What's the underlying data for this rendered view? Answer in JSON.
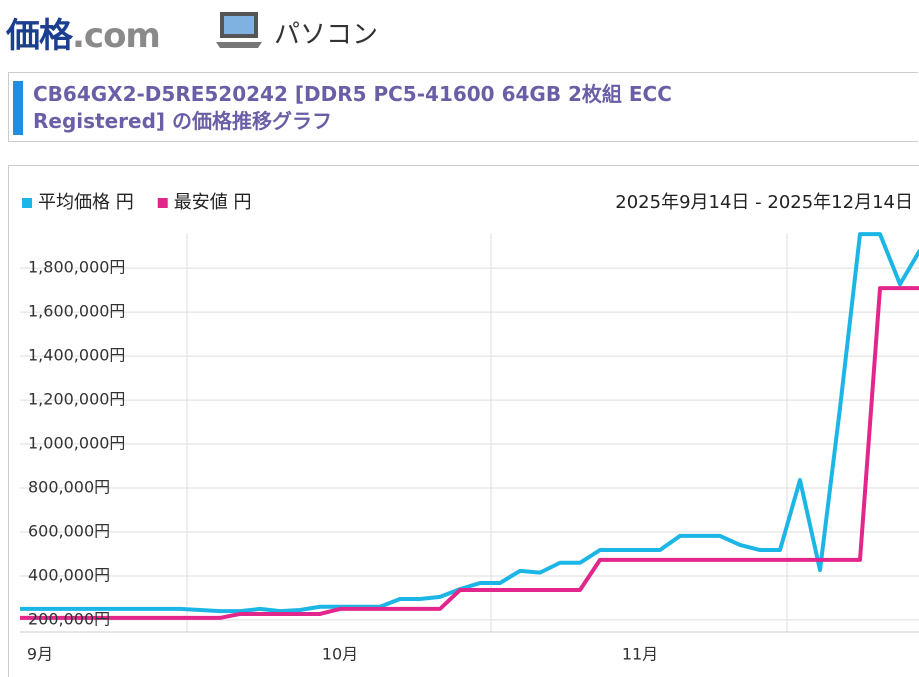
{
  "header": {
    "logo_main": "価格",
    "logo_domain": ".com",
    "category": "パソコン"
  },
  "page_title": "CB64GX2-D5RE520242 [DDR5 PC5-41600 64GB 2枚組 ECC Registered] の価格推移グラフ",
  "chart_data": {
    "type": "line",
    "date_range": "2025年9月14日 - 2025年12月14日",
    "categories": [
      null,
      "9月",
      null,
      null,
      null,
      null,
      null,
      null,
      null,
      null,
      null,
      null,
      null,
      null,
      null,
      null,
      "10月",
      null,
      null,
      null,
      null,
      null,
      null,
      null,
      null,
      null,
      null,
      null,
      null,
      null,
      null,
      "11月",
      null,
      null,
      null,
      null,
      null,
      null,
      null,
      null,
      null,
      null,
      null,
      null,
      null,
      null
    ],
    "series": [
      {
        "name": "平均価格 円",
        "color": "#1cb6e6",
        "values": [
          250000,
          250000,
          250000,
          250000,
          250000,
          250000,
          250000,
          250000,
          250000,
          245000,
          240000,
          240000,
          250000,
          240000,
          245000,
          260000,
          260000,
          260000,
          260000,
          295000,
          295000,
          305000,
          340000,
          368000,
          368000,
          423000,
          415000,
          460000,
          460000,
          518000,
          518000,
          518000,
          518000,
          582000,
          582000,
          582000,
          541000,
          518000,
          518000,
          836000,
          427000,
          1164000,
          1955000,
          1955000,
          1727000,
          1882000
        ]
      },
      {
        "name": "最安値 円",
        "color": "#e3268c",
        "values": [
          209000,
          209000,
          209000,
          209000,
          209000,
          209000,
          209000,
          209000,
          209000,
          209000,
          209000,
          227000,
          227000,
          227000,
          227000,
          227000,
          250000,
          250000,
          250000,
          250000,
          250000,
          250000,
          336000,
          336000,
          336000,
          336000,
          336000,
          336000,
          336000,
          473000,
          473000,
          473000,
          473000,
          473000,
          473000,
          473000,
          473000,
          473000,
          473000,
          473000,
          473000,
          473000,
          473000,
          1709000,
          1709000,
          1709000
        ]
      }
    ],
    "ylim": [
      145000,
      1960000
    ],
    "yticks": [
      {
        "value": 200000,
        "label": "200,000円"
      },
      {
        "value": 400000,
        "label": "400,000円"
      },
      {
        "value": 600000,
        "label": "600,000円"
      },
      {
        "value": 800000,
        "label": "800,000円"
      },
      {
        "value": 1000000,
        "label": "1,000,000円"
      },
      {
        "value": 1200000,
        "label": "1,200,000円"
      },
      {
        "value": 1400000,
        "label": "1,400,000円"
      },
      {
        "value": 1600000,
        "label": "1,600,000円"
      },
      {
        "value": 1800000,
        "label": "1,800,000円"
      }
    ],
    "grid": true
  }
}
